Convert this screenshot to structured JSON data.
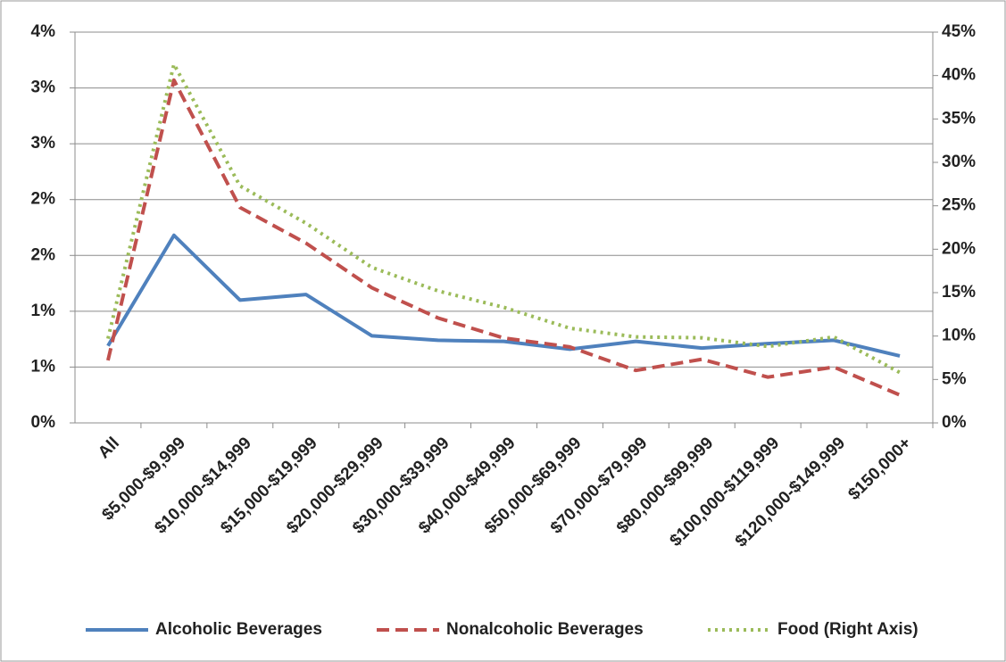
{
  "chart_data": {
    "type": "line",
    "categories": [
      "All",
      "$5,000-$9,999",
      "$10,000-$14,999",
      "$15,000-$19,999",
      "$20,000-$29,999",
      "$30,000-$39,999",
      "$40,000-$49,999",
      "$50,000-$69,999",
      "$70,000-$79,999",
      "$80,000-$99,999",
      "$100,000-$119,999",
      "$120,000-$149,999",
      "$150,000+"
    ],
    "series": [
      {
        "name": "Alcoholic Beverages",
        "color": "#4f81bd",
        "dash": "solid",
        "values": [
          0.69,
          1.68,
          1.1,
          1.15,
          0.78,
          0.74,
          0.73,
          0.66,
          0.73,
          0.67,
          0.71,
          0.74,
          0.6
        ]
      },
      {
        "name": "Nonalcoholic Beverages",
        "color": "#c0504d",
        "dash": "dashed",
        "values": [
          0.56,
          3.07,
          1.93,
          1.61,
          1.21,
          0.94,
          0.76,
          0.68,
          0.47,
          0.57,
          0.41,
          0.5,
          0.25
        ]
      },
      {
        "name": "Food (Right Axis)",
        "color": "#9bbb59",
        "dash": "dotted",
        "axis": "y2",
        "values": [
          9.7,
          41.3,
          27.3,
          23.0,
          17.9,
          15.2,
          13.3,
          10.9,
          9.9,
          9.8,
          8.8,
          9.9,
          5.8
        ]
      }
    ],
    "ylim": [
      0,
      3.5
    ],
    "yticks": [
      {
        "value": 0,
        "label": "0%"
      },
      {
        "value": 0.5,
        "label": "1%"
      },
      {
        "value": 1,
        "label": "1%"
      },
      {
        "value": 1.5,
        "label": "2%"
      },
      {
        "value": 2,
        "label": "2%"
      },
      {
        "value": 2.5,
        "label": "3%"
      },
      {
        "value": 3,
        "label": "3%"
      },
      {
        "value": 3.5,
        "label": "4%"
      }
    ],
    "y2lim": [
      0,
      45
    ],
    "y2ticks": [
      {
        "value": 0,
        "label": "0%"
      },
      {
        "value": 5,
        "label": "5%"
      },
      {
        "value": 10,
        "label": "10%"
      },
      {
        "value": 15,
        "label": "15%"
      },
      {
        "value": 20,
        "label": "20%"
      },
      {
        "value": 25,
        "label": "25%"
      },
      {
        "value": 30,
        "label": "30%"
      },
      {
        "value": 35,
        "label": "35%"
      },
      {
        "value": 40,
        "label": "40%"
      },
      {
        "value": 45,
        "label": "45%"
      }
    ],
    "grid": true,
    "legend": "bottom"
  }
}
